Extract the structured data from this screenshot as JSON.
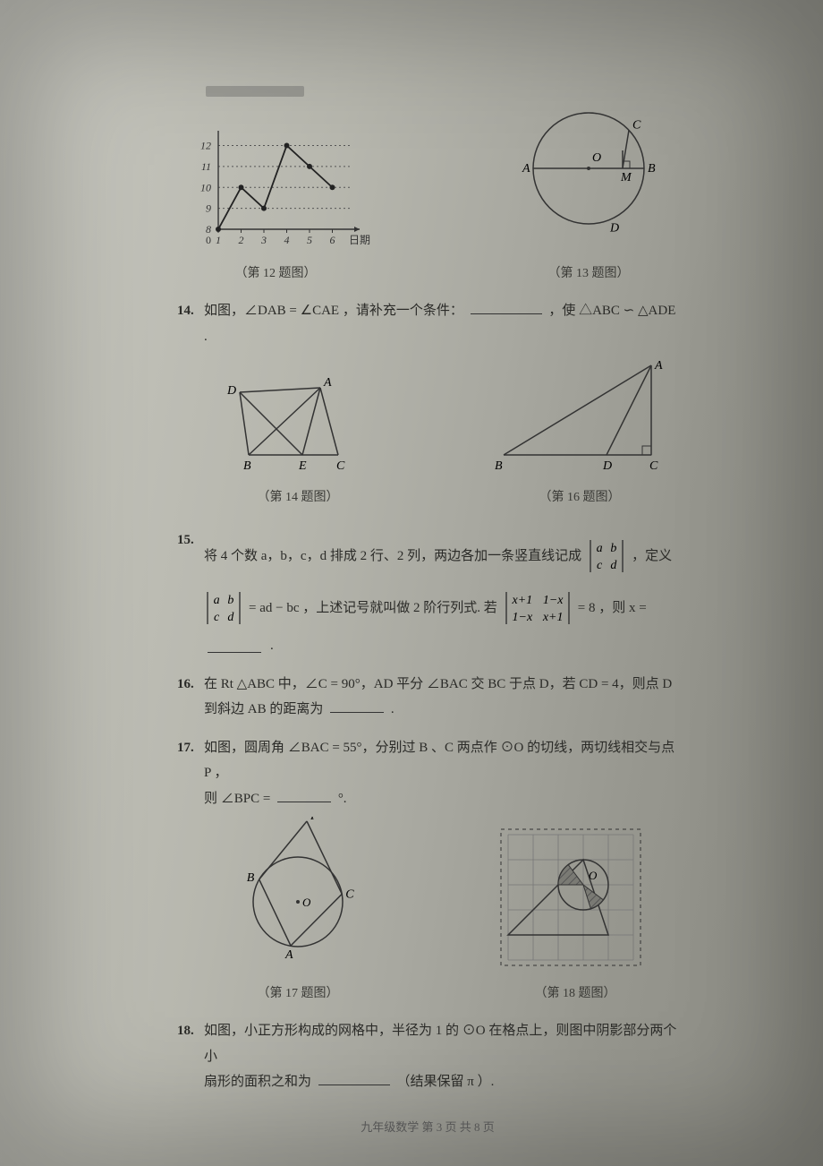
{
  "q12": {
    "caption": "（第 12 题图）",
    "chart": {
      "type": "line",
      "xvals": [
        1,
        2,
        3,
        4,
        5,
        6
      ],
      "yvals": [
        8,
        10,
        9,
        12,
        11,
        10
      ],
      "yticks": [
        8,
        9,
        10,
        11,
        12
      ],
      "xlabel": "日期",
      "axis_color": "#333333",
      "grid_color": "#555555",
      "point_color": "#222222",
      "line_color": "#222222",
      "fontsize": 12
    }
  },
  "q13": {
    "caption": "（第 13 题图）",
    "labels": {
      "A": "A",
      "B": "B",
      "C": "C",
      "D": "D",
      "O": "O",
      "M": "M"
    },
    "stroke": "#333333"
  },
  "q14": {
    "num": "14.",
    "text_a": "如图，∠DAB = ∠CAE ，请补充一个条件：",
    "text_b": "，使 △ABC ∽ △ADE .",
    "caption": "（第 14 题图）",
    "labels": {
      "A": "A",
      "B": "B",
      "C": "C",
      "D": "D",
      "E": "E"
    },
    "stroke": "#333333"
  },
  "q16fig": {
    "caption": "（第 16 题图）",
    "labels": {
      "A": "A",
      "B": "B",
      "C": "C",
      "D": "D"
    },
    "stroke": "#333333"
  },
  "q15": {
    "num": "15.",
    "line1_a": "将 4 个数 a，b，c，d 排成 2 行、2 列，两边各加一条竖直线记成",
    "line1_b": "，定义",
    "line2_a": "= ad − bc ，上述记号就叫做 2 阶行列式. 若",
    "line2_b": "= 8 ，则 x =",
    "det1": {
      "a": "a",
      "b": "b",
      "c": "c",
      "d": "d"
    },
    "det2": {
      "a": "x+1",
      "b": "1−x",
      "c": "1−x",
      "d": "x+1"
    },
    "stroke": "#333333",
    "fontsize": 14
  },
  "q16": {
    "num": "16.",
    "text_a": "在 Rt △ABC 中，∠C = 90°，AD 平分 ∠BAC 交 BC 于点 D，若 CD = 4，则点 D",
    "text_b": "到斜边 AB 的距离为",
    "period": "."
  },
  "q17": {
    "num": "17.",
    "text_a": "如图，圆周角 ∠BAC = 55°，分别过 B 、C 两点作 ⊙O 的切线，两切线相交与点 P ，",
    "text_b": "则 ∠BPC =",
    "deg": "°.",
    "caption": "（第 17 题图）",
    "labels": {
      "A": "A",
      "B": "B",
      "C": "C",
      "O": "O",
      "P": "P"
    },
    "stroke": "#333333"
  },
  "q18": {
    "num": "18.",
    "text_a": "如图，小正方形构成的网格中，半径为 1 的 ⊙O 在格点上，则图中阴影部分两个小",
    "text_b": "扇形的面积之和为",
    "text_c": "（结果保留 π ）.",
    "caption": "（第 18 题图）",
    "labels": {
      "O": "O"
    },
    "grid_color": "#777777",
    "stroke": "#333333",
    "shade": "#7a7a74"
  },
  "footer": "九年级数学   第 3 页   共 8 页"
}
